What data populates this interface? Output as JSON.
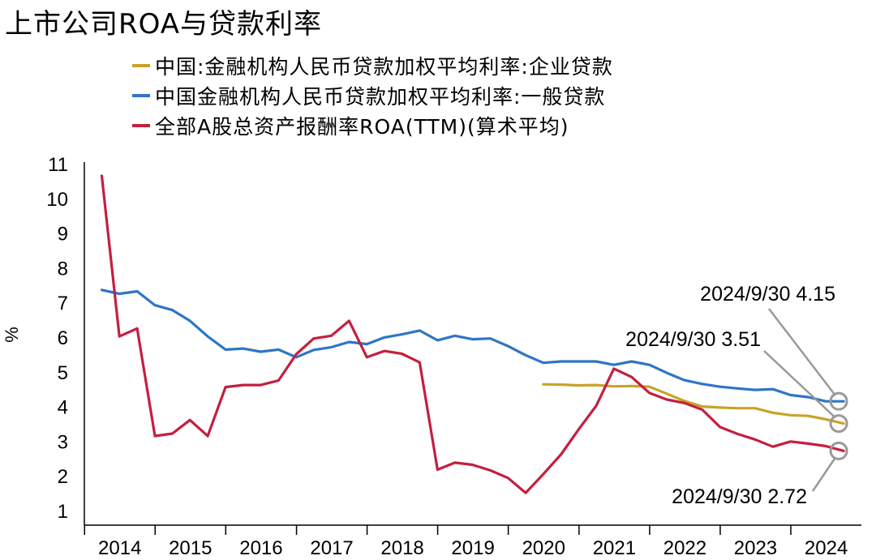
{
  "chart_data": {
    "type": "line",
    "title": "上市公司ROA与贷款利率",
    "ylabel": "%",
    "ylim": [
      1,
      11
    ],
    "yticks": [
      1,
      2,
      3,
      4,
      5,
      6,
      7,
      8,
      9,
      10,
      11
    ],
    "xlim": [
      "2013-12-31",
      "2024-12-31"
    ],
    "year_labels": [
      "2014",
      "2015",
      "2016",
      "2017",
      "2018",
      "2019",
      "2020",
      "2021",
      "2022",
      "2023",
      "2024"
    ],
    "grid": false,
    "legend_position": "top",
    "series": [
      {
        "name": "中国:金融机构人民币贷款加权平均利率:企业贷款",
        "color": "#c9a227",
        "points": [
          [
            "2020-06-30",
            4.64
          ],
          [
            "2020-09-30",
            4.63
          ],
          [
            "2020-12-31",
            4.61
          ],
          [
            "2021-03-31",
            4.62
          ],
          [
            "2021-06-30",
            4.58
          ],
          [
            "2021-09-30",
            4.59
          ],
          [
            "2021-12-31",
            4.57
          ],
          [
            "2022-03-31",
            4.37
          ],
          [
            "2022-06-30",
            4.16
          ],
          [
            "2022-09-30",
            4.0
          ],
          [
            "2022-12-31",
            3.97
          ],
          [
            "2023-03-31",
            3.95
          ],
          [
            "2023-06-30",
            3.95
          ],
          [
            "2023-09-30",
            3.82
          ],
          [
            "2023-12-31",
            3.75
          ],
          [
            "2024-03-31",
            3.73
          ],
          [
            "2024-06-30",
            3.63
          ],
          [
            "2024-09-30",
            3.51
          ]
        ]
      },
      {
        "name": "中国金融机构人民币贷款加权平均利率:一般贷款",
        "color": "#2e75c6",
        "points": [
          [
            "2014-03-31",
            7.36
          ],
          [
            "2014-06-30",
            7.25
          ],
          [
            "2014-09-30",
            7.32
          ],
          [
            "2014-12-31",
            6.92
          ],
          [
            "2015-03-31",
            6.78
          ],
          [
            "2015-06-30",
            6.47
          ],
          [
            "2015-09-30",
            6.02
          ],
          [
            "2015-12-31",
            5.64
          ],
          [
            "2016-03-31",
            5.67
          ],
          [
            "2016-06-30",
            5.58
          ],
          [
            "2016-09-30",
            5.64
          ],
          [
            "2016-12-31",
            5.42
          ],
          [
            "2017-03-31",
            5.63
          ],
          [
            "2017-06-30",
            5.71
          ],
          [
            "2017-09-30",
            5.86
          ],
          [
            "2017-12-31",
            5.8
          ],
          [
            "2018-03-31",
            5.99
          ],
          [
            "2018-06-30",
            6.08
          ],
          [
            "2018-09-30",
            6.19
          ],
          [
            "2018-12-31",
            5.91
          ],
          [
            "2019-03-31",
            6.04
          ],
          [
            "2019-06-30",
            5.94
          ],
          [
            "2019-09-30",
            5.96
          ],
          [
            "2019-12-31",
            5.74
          ],
          [
            "2020-03-31",
            5.48
          ],
          [
            "2020-06-30",
            5.26
          ],
          [
            "2020-09-30",
            5.3
          ],
          [
            "2020-12-31",
            5.3
          ],
          [
            "2021-03-31",
            5.3
          ],
          [
            "2021-06-30",
            5.2
          ],
          [
            "2021-09-30",
            5.3
          ],
          [
            "2021-12-31",
            5.2
          ],
          [
            "2022-03-31",
            4.97
          ],
          [
            "2022-06-30",
            4.76
          ],
          [
            "2022-09-30",
            4.65
          ],
          [
            "2022-12-31",
            4.57
          ],
          [
            "2023-03-31",
            4.52
          ],
          [
            "2023-06-30",
            4.48
          ],
          [
            "2023-09-30",
            4.5
          ],
          [
            "2023-12-31",
            4.33
          ],
          [
            "2024-03-31",
            4.27
          ],
          [
            "2024-06-30",
            4.15
          ],
          [
            "2024-09-30",
            4.15
          ]
        ]
      },
      {
        "name": "全部A股总资产报酬率ROA(TTM)(算术平均)",
        "color": "#c41f3e",
        "points": [
          [
            "2014-03-31",
            10.65
          ],
          [
            "2014-06-30",
            6.02
          ],
          [
            "2014-09-30",
            6.25
          ],
          [
            "2014-12-31",
            3.15
          ],
          [
            "2015-03-31",
            3.22
          ],
          [
            "2015-06-30",
            3.61
          ],
          [
            "2015-09-30",
            3.15
          ],
          [
            "2015-12-31",
            4.56
          ],
          [
            "2016-03-31",
            4.62
          ],
          [
            "2016-06-30",
            4.62
          ],
          [
            "2016-09-30",
            4.75
          ],
          [
            "2016-12-31",
            5.51
          ],
          [
            "2017-03-31",
            5.96
          ],
          [
            "2017-06-30",
            6.04
          ],
          [
            "2017-09-30",
            6.47
          ],
          [
            "2017-12-31",
            5.42
          ],
          [
            "2018-03-31",
            5.6
          ],
          [
            "2018-06-30",
            5.52
          ],
          [
            "2018-09-30",
            5.27
          ],
          [
            "2018-12-31",
            2.18
          ],
          [
            "2019-03-31",
            2.38
          ],
          [
            "2019-06-30",
            2.32
          ],
          [
            "2019-09-30",
            2.16
          ],
          [
            "2019-12-31",
            1.94
          ],
          [
            "2020-03-31",
            1.51
          ],
          [
            "2020-06-30",
            2.05
          ],
          [
            "2020-09-30",
            2.62
          ],
          [
            "2020-12-31",
            3.35
          ],
          [
            "2021-03-31",
            4.02
          ],
          [
            "2021-06-30",
            5.09
          ],
          [
            "2021-09-30",
            4.85
          ],
          [
            "2021-12-31",
            4.39
          ],
          [
            "2022-03-31",
            4.2
          ],
          [
            "2022-06-30",
            4.1
          ],
          [
            "2022-09-30",
            3.91
          ],
          [
            "2022-12-31",
            3.41
          ],
          [
            "2023-03-31",
            3.21
          ],
          [
            "2023-06-30",
            3.05
          ],
          [
            "2023-09-30",
            2.84
          ],
          [
            "2023-12-31",
            2.99
          ],
          [
            "2024-03-31",
            2.93
          ],
          [
            "2024-06-30",
            2.86
          ],
          [
            "2024-09-30",
            2.72
          ]
        ]
      }
    ],
    "annotations": [
      {
        "text": "2024/9/30 4.15",
        "x": "2024-09-30",
        "y": 4.15,
        "color": "#2e75c6"
      },
      {
        "text": "2024/9/30 3.51",
        "x": "2024-09-30",
        "y": 3.51,
        "color": "#c9a227"
      },
      {
        "text": "2024/9/30 2.72",
        "x": "2024-09-30",
        "y": 2.72,
        "color": "#c41f3e"
      }
    ]
  }
}
